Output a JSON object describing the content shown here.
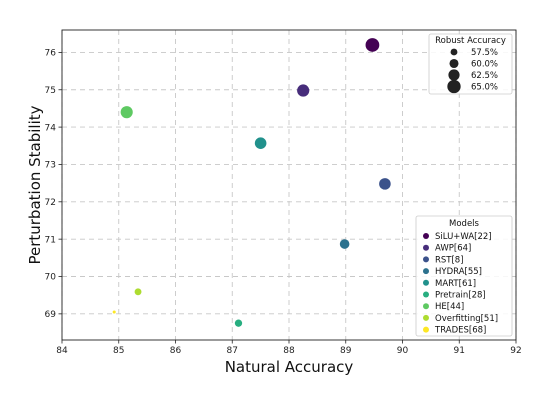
{
  "chart_data": {
    "type": "scatter",
    "xlabel": "Natural Accuracy",
    "ylabel": "Perturbation Stability",
    "xlim": [
      84,
      92
    ],
    "ylim": [
      68.3,
      76.6
    ],
    "x_ticks": [
      "84",
      "85",
      "86",
      "87",
      "88",
      "89",
      "90",
      "91",
      "92"
    ],
    "y_ticks": [
      "69",
      "70",
      "71",
      "72",
      "73",
      "74",
      "75",
      "76"
    ],
    "grid": true,
    "points": [
      {
        "name": "SiLU+WA[22]",
        "x": 89.47,
        "y": 76.2,
        "robust": 65.5,
        "color": "#440154"
      },
      {
        "name": "AWP[64]",
        "x": 88.25,
        "y": 74.98,
        "robust": 63.7,
        "color": "#472d7b"
      },
      {
        "name": "RST[8]",
        "x": 89.69,
        "y": 72.48,
        "robust": 63.0,
        "color": "#3b528b"
      },
      {
        "name": "HYDRA[55]",
        "x": 88.98,
        "y": 70.87,
        "robust": 60.7,
        "color": "#2c728e"
      },
      {
        "name": "MART[61]",
        "x": 87.5,
        "y": 73.57,
        "robust": 63.0,
        "color": "#21918c"
      },
      {
        "name": "Pretrain[28]",
        "x": 87.11,
        "y": 68.75,
        "robust": 58.0,
        "color": "#28ae80"
      },
      {
        "name": "HE[44]",
        "x": 85.14,
        "y": 74.4,
        "robust": 63.6,
        "color": "#5ec962"
      },
      {
        "name": "Overfitting[51]",
        "x": 85.34,
        "y": 69.59,
        "robust": 57.5,
        "color": "#addc30"
      },
      {
        "name": "TRADES[68]",
        "x": 84.92,
        "y": 69.05,
        "robust": 53.1,
        "color": "#fde725"
      }
    ],
    "size_legend": {
      "title": "Robust Accuracy",
      "placement": "top-right",
      "entries": [
        "57.5%",
        "60.0%",
        "62.5%",
        "65.0%"
      ],
      "values": [
        57.5,
        60.0,
        62.5,
        65.0
      ]
    },
    "color_legend": {
      "title": "Models",
      "placement": "lower-right"
    }
  }
}
